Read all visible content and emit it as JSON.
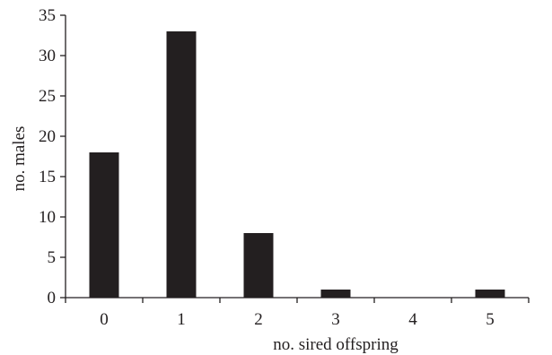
{
  "chart_data": {
    "type": "bar",
    "title": "",
    "xlabel": "no. sired offspring",
    "ylabel": "no. males",
    "categories": [
      "0",
      "1",
      "2",
      "3",
      "4",
      "5"
    ],
    "series": [
      {
        "values": [
          18,
          33,
          8,
          1,
          0,
          1
        ]
      }
    ],
    "ylim": [
      0,
      35
    ],
    "yticks": [
      "0",
      "5",
      "10",
      "15",
      "20",
      "25",
      "30",
      "35"
    ],
    "grid": false,
    "legend": "none",
    "colors": {
      "bar": "#231f20",
      "axis": "#231f20"
    }
  }
}
